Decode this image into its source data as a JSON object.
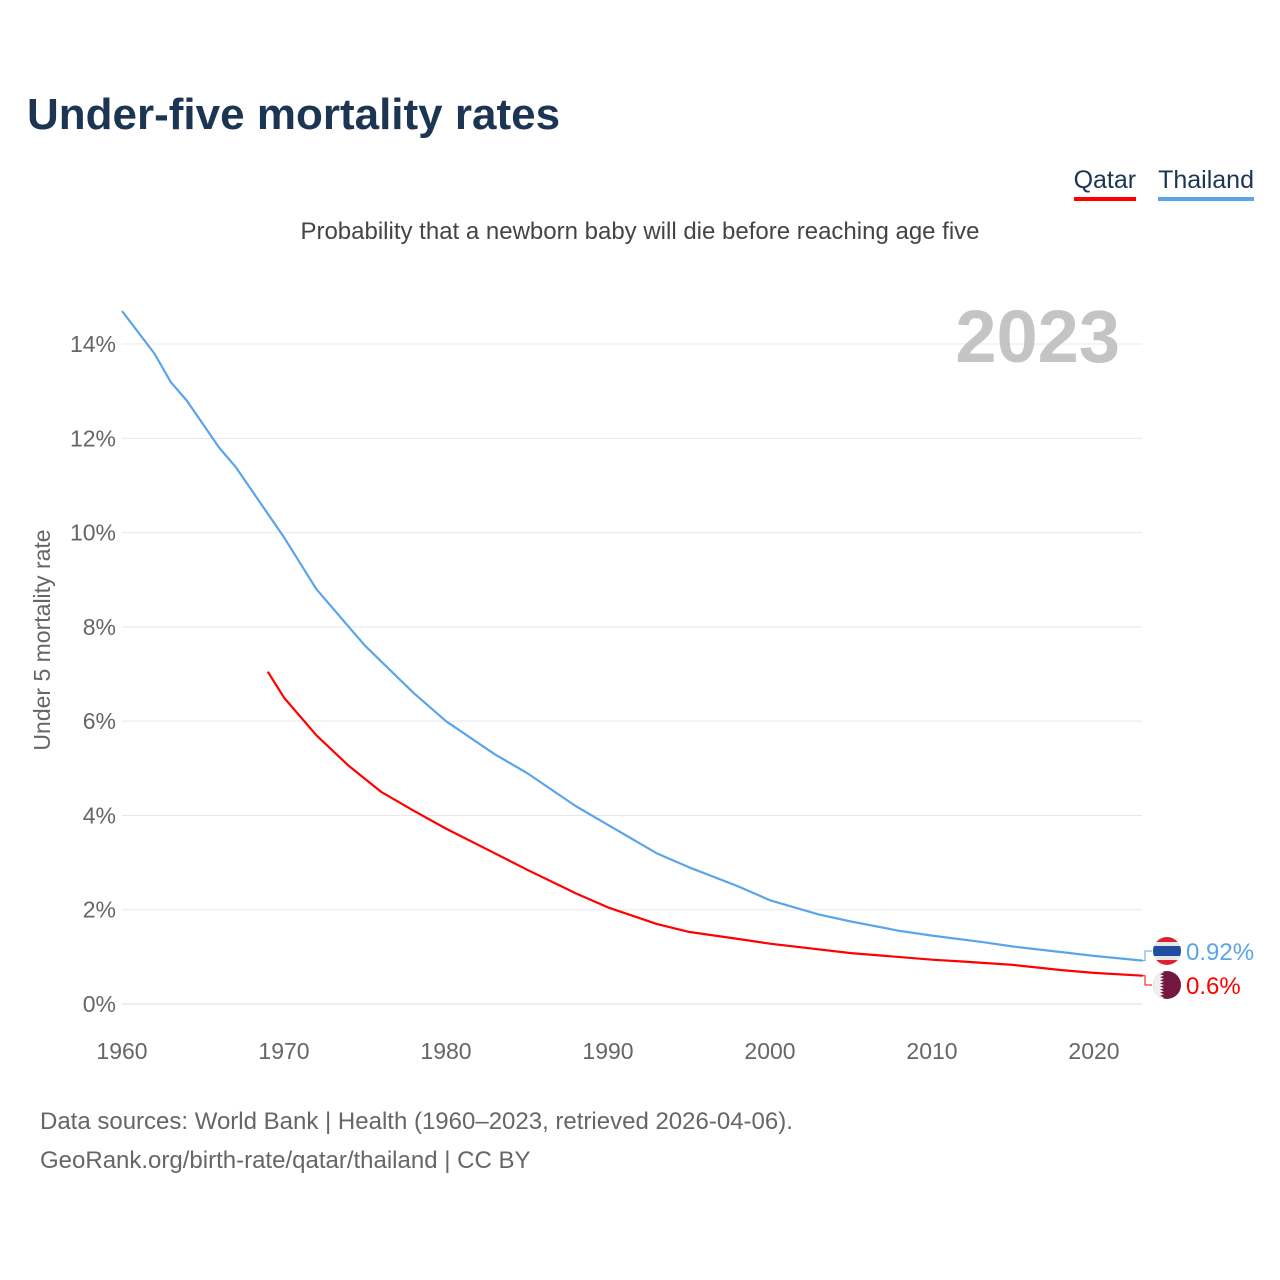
{
  "header": {
    "title": "Under-five mortality rates",
    "subtitle": "Probability that a newborn baby will die before reaching age five"
  },
  "legend": [
    {
      "label": "Qatar",
      "color": "#ff0000"
    },
    {
      "label": "Thailand",
      "color": "#5aa5ea"
    }
  ],
  "chart_data": {
    "type": "line",
    "title": "Under-five mortality rates",
    "ylabel": "Under 5 mortality rate",
    "xlabel": "",
    "xlim": [
      1960,
      2023
    ],
    "ylim": [
      0,
      14.7
    ],
    "x_ticks": [
      "1960",
      "1970",
      "1980",
      "1990",
      "2000",
      "2010",
      "2020"
    ],
    "x_tick_values": [
      1960,
      1970,
      1980,
      1990,
      2000,
      2010,
      2020
    ],
    "y_ticks": [
      "0%",
      "2%",
      "4%",
      "6%",
      "8%",
      "10%",
      "12%",
      "14%"
    ],
    "y_tick_values": [
      0,
      2,
      4,
      6,
      8,
      10,
      12,
      14
    ],
    "grid": true,
    "year_watermark": "2023",
    "series": [
      {
        "name": "Thailand",
        "color": "#5aa5ea",
        "end_label": "0.92%",
        "x": [
          1960,
          1962,
          1963,
          1964,
          1966,
          1967,
          1969,
          1970,
          1972,
          1975,
          1978,
          1980,
          1983,
          1985,
          1988,
          1990,
          1993,
          1995,
          1998,
          2000,
          2003,
          2005,
          2008,
          2010,
          2013,
          2015,
          2018,
          2020,
          2023
        ],
        "values": [
          14.7,
          13.8,
          13.2,
          12.8,
          11.8,
          11.4,
          10.4,
          9.9,
          8.8,
          7.6,
          6.6,
          6.0,
          5.3,
          4.9,
          4.2,
          3.8,
          3.2,
          2.9,
          2.5,
          2.2,
          1.9,
          1.75,
          1.55,
          1.45,
          1.32,
          1.22,
          1.1,
          1.02,
          0.92
        ]
      },
      {
        "name": "Qatar",
        "color": "#ff0000",
        "end_label": "0.6%",
        "x": [
          1969,
          1970,
          1972,
          1974,
          1976,
          1978,
          1980,
          1983,
          1985,
          1988,
          1990,
          1993,
          1995,
          1998,
          2000,
          2005,
          2010,
          2012,
          2015,
          2018,
          2020,
          2023
        ],
        "values": [
          7.05,
          6.5,
          5.7,
          5.05,
          4.5,
          4.1,
          3.72,
          3.2,
          2.85,
          2.35,
          2.05,
          1.7,
          1.53,
          1.38,
          1.28,
          1.08,
          0.94,
          0.9,
          0.83,
          0.72,
          0.66,
          0.6
        ]
      }
    ]
  },
  "footer": {
    "line1": "Data sources: World Bank | Health (1960–2023, retrieved 2026-04-06).",
    "line2": "GeoRank.org/birth-rate/qatar/thailand | CC BY"
  }
}
